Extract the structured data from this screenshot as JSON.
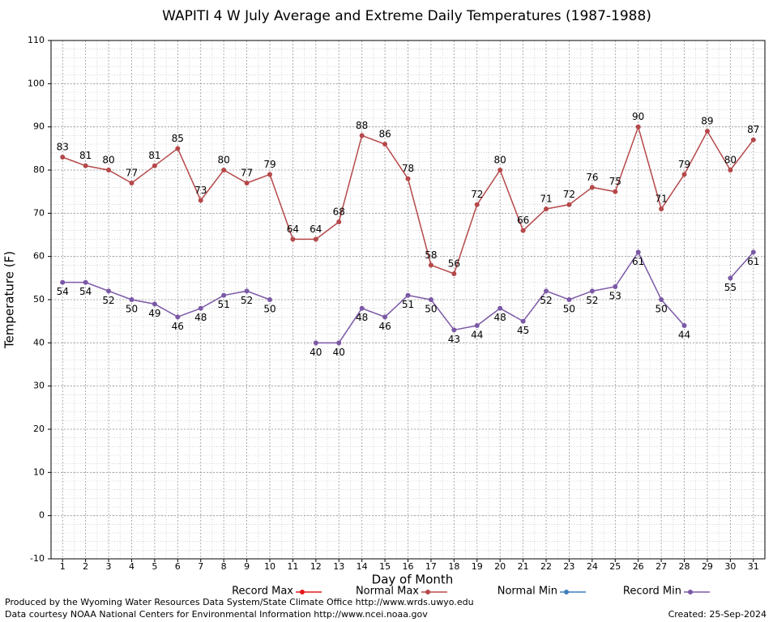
{
  "chart_data": {
    "type": "line",
    "title": "WAPITI 4 W July Average and Extreme Daily Temperatures (1987-1988)",
    "x_label": "Day of Month",
    "y_label": "Temperature (F)",
    "categories": [
      "1",
      "2",
      "3",
      "4",
      "5",
      "6",
      "7",
      "8",
      "9",
      "10",
      "11",
      "12",
      "13",
      "14",
      "15",
      "16",
      "17",
      "18",
      "19",
      "20",
      "21",
      "22",
      "23",
      "24",
      "25",
      "26",
      "27",
      "28",
      "29",
      "30",
      "31"
    ],
    "ylim": [
      -10,
      110
    ],
    "yticks": [
      -10,
      0,
      10,
      20,
      30,
      40,
      50,
      60,
      70,
      80,
      90,
      100,
      110
    ],
    "grid": true,
    "series": [
      {
        "name": "Record Max",
        "color": "#e31a1c",
        "values": [
          null,
          null,
          null,
          null,
          null,
          null,
          null,
          null,
          null,
          null,
          null,
          null,
          null,
          null,
          null,
          null,
          null,
          null,
          null,
          null,
          null,
          null,
          null,
          null,
          null,
          null,
          null,
          null,
          null,
          null,
          null
        ]
      },
      {
        "name": "Normal Max",
        "color": "#b5484a",
        "values": [
          83,
          81,
          80,
          77,
          81,
          85,
          73,
          80,
          77,
          79,
          64,
          64,
          68,
          88,
          86,
          78,
          58,
          56,
          72,
          80,
          66,
          71,
          72,
          76,
          75,
          90,
          71,
          79,
          89,
          80,
          87
        ]
      },
      {
        "name": "Normal Min",
        "color": "#3f7fbf",
        "values": [
          null,
          null,
          null,
          null,
          null,
          null,
          null,
          null,
          null,
          null,
          null,
          null,
          null,
          null,
          null,
          null,
          null,
          null,
          null,
          null,
          null,
          null,
          null,
          null,
          null,
          null,
          null,
          null,
          null,
          null,
          null
        ]
      },
      {
        "name": "Record Min",
        "color": "#7b59a6",
        "values": [
          54,
          54,
          52,
          50,
          49,
          46,
          48,
          51,
          52,
          50,
          null,
          40,
          40,
          48,
          46,
          51,
          50,
          43,
          44,
          48,
          45,
          52,
          50,
          52,
          53,
          61,
          50,
          44,
          null,
          55,
          61
        ]
      }
    ],
    "footer_left": [
      "Produced by the Wyoming Water Resources Data System/State Climate Office http://www.wrds.uwyo.edu",
      "Data courtesy NOAA National Centers for Environmental Information http://www.ncei.noaa.gov"
    ],
    "footer_right": "Created:  25-Sep-2024"
  }
}
